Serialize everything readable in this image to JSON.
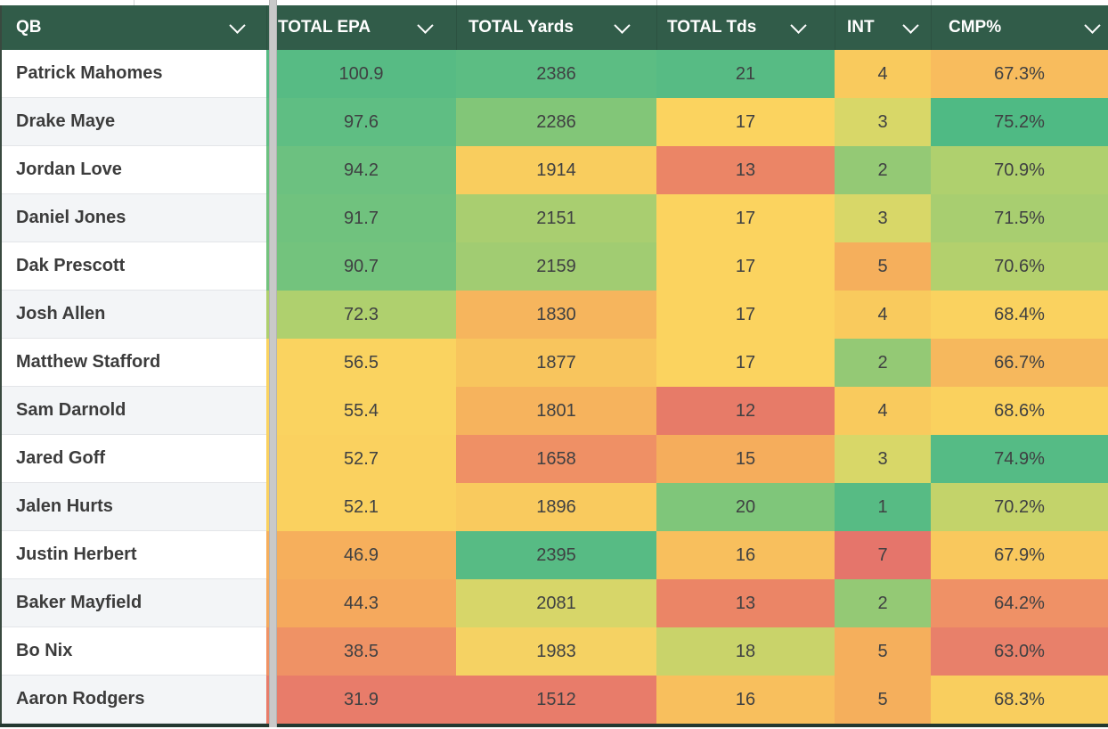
{
  "theme": {
    "header_bg": "#315C49",
    "header_text": "#FFFFFF",
    "row_bg_odd": "#FFFFFF",
    "row_bg_even": "#F3F5F7",
    "qb_text": "#3C3C3C",
    "cell_text": "#3F4042",
    "divider_color": "#C9C9C9",
    "sheet_edge": "#233830",
    "gridline": "#E3E5E8",
    "heat_green": "#57BB84",
    "heat_yellow": "#FBD35F",
    "heat_red": "#E87C6A"
  },
  "header": {
    "columns": [
      {
        "id": "qb",
        "label": "QB"
      },
      {
        "id": "epa",
        "label": "TOTAL EPA"
      },
      {
        "id": "yards",
        "label": "TOTAL Yards"
      },
      {
        "id": "tds",
        "label": "TOTAL Tds"
      },
      {
        "id": "int",
        "label": "INT"
      },
      {
        "id": "cmp",
        "label": "CMP%"
      }
    ],
    "sort_icon": "chevron-down"
  },
  "rows": [
    {
      "qb": "Patrick Mahomes",
      "epa": "100.9",
      "yards": "2386",
      "tds": "21",
      "int": "4",
      "cmp": "67.3%",
      "colors": {
        "epa": "#57BB84",
        "yards": "#5CBD83",
        "tds": "#57BB84",
        "int": "#F9CA5D",
        "cmp": "#F8BC5D"
      }
    },
    {
      "qb": "Drake Maye",
      "epa": "97.6",
      "yards": "2286",
      "tds": "17",
      "int": "3",
      "cmp": "75.2%",
      "colors": {
        "epa": "#5FBE83",
        "yards": "#82C678",
        "tds": "#FBD35F",
        "int": "#D8D768",
        "cmp": "#4FBA84"
      }
    },
    {
      "qb": "Jordan Love",
      "epa": "94.2",
      "yards": "1914",
      "tds": "13",
      "int": "2",
      "cmp": "70.9%",
      "colors": {
        "epa": "#6CC180",
        "yards": "#F9CD5E",
        "tds": "#EB8566",
        "int": "#94C975",
        "cmp": "#AFD06E"
      }
    },
    {
      "qb": "Daniel Jones",
      "epa": "91.7",
      "yards": "2151",
      "tds": "17",
      "int": "3",
      "cmp": "71.5%",
      "colors": {
        "epa": "#70C27E",
        "yards": "#A9CE70",
        "tds": "#FBD35F",
        "int": "#D8D768",
        "cmp": "#A8CE70"
      }
    },
    {
      "qb": "Dak Prescott",
      "epa": "90.7",
      "yards": "2159",
      "tds": "17",
      "int": "5",
      "cmp": "70.6%",
      "colors": {
        "epa": "#73C37D",
        "yards": "#A1CC72",
        "tds": "#FBD35F",
        "int": "#F5AF5C",
        "cmp": "#B3D06D"
      }
    },
    {
      "qb": "Josh Allen",
      "epa": "72.3",
      "yards": "1830",
      "tds": "17",
      "int": "4",
      "cmp": "68.4%",
      "colors": {
        "epa": "#AFD06E",
        "yards": "#F6B55D",
        "tds": "#FBD35F",
        "int": "#F9CA5D",
        "cmp": "#FAD25F"
      }
    },
    {
      "qb": "Matthew Stafford",
      "epa": "56.5",
      "yards": "1877",
      "tds": "17",
      "int": "2",
      "cmp": "66.7%",
      "colors": {
        "epa": "#FAD360",
        "yards": "#F8C55D",
        "tds": "#FBD35F",
        "int": "#94C975",
        "cmp": "#F6B85D"
      }
    },
    {
      "qb": "Sam Darnold",
      "epa": "55.4",
      "yards": "1801",
      "tds": "12",
      "int": "4",
      "cmp": "68.6%",
      "colors": {
        "epa": "#FAD360",
        "yards": "#F6B35D",
        "tds": "#E77B68",
        "int": "#F9CA5D",
        "cmp": "#FAD15E"
      }
    },
    {
      "qb": "Jared Goff",
      "epa": "52.7",
      "yards": "1658",
      "tds": "15",
      "int": "3",
      "cmp": "74.9%",
      "colors": {
        "epa": "#FAD15F",
        "yards": "#EF9065",
        "tds": "#F5AD5C",
        "int": "#D8D768",
        "cmp": "#55BB85"
      }
    },
    {
      "qb": "Jalen Hurts",
      "epa": "52.1",
      "yards": "1896",
      "tds": "20",
      "int": "1",
      "cmp": "70.2%",
      "colors": {
        "epa": "#FAD15F",
        "yards": "#F9CA5E",
        "tds": "#7FC67A",
        "int": "#57BB84",
        "cmp": "#C3D36A"
      }
    },
    {
      "qb": "Justin Herbert",
      "epa": "46.9",
      "yards": "2395",
      "tds": "16",
      "int": "7",
      "cmp": "67.9%",
      "colors": {
        "epa": "#F6AF5C",
        "yards": "#57BB84",
        "tds": "#F8BF5D",
        "int": "#E5756B",
        "cmp": "#F9C85D"
      }
    },
    {
      "qb": "Baker Mayfield",
      "epa": "44.3",
      "yards": "2081",
      "tds": "13",
      "int": "2",
      "cmp": "64.2%",
      "colors": {
        "epa": "#F5A95D",
        "yards": "#D7D669",
        "tds": "#EB8566",
        "int": "#94C975",
        "cmp": "#EF9166"
      }
    },
    {
      "qb": "Bo Nix",
      "epa": "38.5",
      "yards": "1983",
      "tds": "18",
      "int": "5",
      "cmp": "63.0%",
      "colors": {
        "epa": "#EF9265",
        "yards": "#F5D263",
        "tds": "#C9D36A",
        "int": "#F5AF5C",
        "cmp": "#E8806A"
      }
    },
    {
      "qb": "Aaron Rodgers",
      "epa": "31.9",
      "yards": "1512",
      "tds": "16",
      "int": "5",
      "cmp": "68.3%",
      "colors": {
        "epa": "#E87C6A",
        "yards": "#E87C6A",
        "tds": "#F8BF5D",
        "int": "#F5AF5C",
        "cmp": "#F9CE5E"
      }
    }
  ]
}
